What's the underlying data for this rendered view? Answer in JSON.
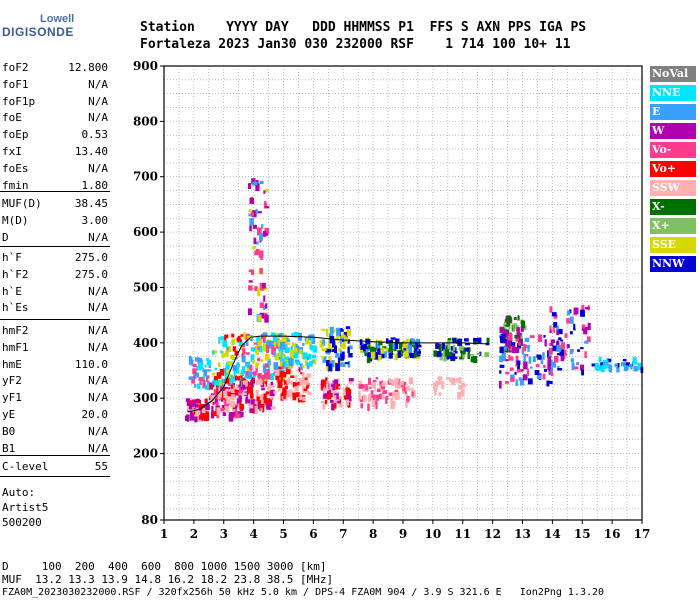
{
  "logo": {
    "top": "Lowell",
    "main": "DIGISONDE"
  },
  "header": {
    "line1": "Station    YYYY DAY   DDD HHMMSS P1  FFS S AXN PPS IGA PS",
    "line2": "Fortaleza 2023 Jan30 030 232000 RSF    1 714 100 10+ 11"
  },
  "params_a": [
    {
      "name": "foF2",
      "value": "12.800"
    },
    {
      "name": "foF1",
      "value": "N/A"
    },
    {
      "name": "foF1p",
      "value": "N/A"
    },
    {
      "name": "foE",
      "value": "N/A"
    },
    {
      "name": "foEp",
      "value": "0.53"
    },
    {
      "name": "fxI",
      "value": "13.40"
    },
    {
      "name": "foEs",
      "value": "N/A"
    },
    {
      "name": "fmin",
      "value": "1.80"
    }
  ],
  "params_b": [
    {
      "name": "MUF(D)",
      "value": "38.45"
    },
    {
      "name": "M(D)",
      "value": "3.00"
    },
    {
      "name": "D",
      "value": "N/A"
    }
  ],
  "params_c": [
    {
      "name": "h`F",
      "value": "275.0"
    },
    {
      "name": "h`F2",
      "value": "275.0"
    },
    {
      "name": "h`E",
      "value": "N/A"
    },
    {
      "name": "h`Es",
      "value": "N/A"
    }
  ],
  "params_d": [
    {
      "name": "hmF2",
      "value": "N/A"
    },
    {
      "name": "hmF1",
      "value": "N/A"
    },
    {
      "name": "hmE",
      "value": "110.0"
    },
    {
      "name": "yF2",
      "value": "N/A"
    },
    {
      "name": "yF1",
      "value": "N/A"
    },
    {
      "name": "yE",
      "value": "20.0"
    },
    {
      "name": "B0",
      "value": "N/A"
    },
    {
      "name": "B1",
      "value": "N/A"
    }
  ],
  "params_e": [
    {
      "name": "C-level",
      "value": "55"
    }
  ],
  "auto": {
    "l1": "Auto:",
    "l2": "Artist5",
    "l3": "500200"
  },
  "footer": {
    "l1": "D     100  200  400  600  800 1000 1500 3000 [km]",
    "l2": "MUF  13.2 13.3 13.9 14.8 16.2 18.2 23.8 38.5 [MHz]",
    "l3": "FZA0M_2023030232000.RSF / 320fx256h 50 kHz 5.0 km / DPS-4 FZA0M 904 / 3.9 S 321.6 E   Ion2Png 1.3.20"
  },
  "legend": [
    {
      "label": "NoVal",
      "bg": "#808080",
      "fg": "#ffffff"
    },
    {
      "label": "NNE",
      "bg": "#00e5ff",
      "fg": "#ffffff"
    },
    {
      "label": "E",
      "bg": "#3aa0ff",
      "fg": "#ffffff"
    },
    {
      "label": "W",
      "bg": "#b000b0",
      "fg": "#ffffff"
    },
    {
      "label": "Vo-",
      "bg": "#ff3c8c",
      "fg": "#ffffff"
    },
    {
      "label": "Vo+",
      "bg": "#ff0000",
      "fg": "#ffffff"
    },
    {
      "label": "SSW",
      "bg": "#ffb0b0",
      "fg": "#ffffff"
    },
    {
      "label": "X-",
      "bg": "#007000",
      "fg": "#ffffff"
    },
    {
      "label": "X+",
      "bg": "#80c060",
      "fg": "#ffffff"
    },
    {
      "label": "SSE",
      "bg": "#d8d800",
      "fg": "#ffffff"
    },
    {
      "label": "NNW",
      "bg": "#0000d0",
      "fg": "#ffffff"
    }
  ],
  "chart_data": {
    "type": "scatter",
    "x_ticks": [
      1,
      2,
      3,
      4,
      5,
      6,
      7,
      8,
      9,
      10,
      11,
      12,
      13,
      14,
      15,
      16,
      17
    ],
    "y_ticks": [
      80,
      200,
      300,
      400,
      500,
      600,
      700,
      800,
      900
    ],
    "xlim": [
      1,
      17
    ],
    "ylim": [
      80,
      900
    ],
    "grid": true,
    "trace": {
      "x": [
        1.8,
        2.2,
        2.6,
        3.0,
        3.3,
        3.6,
        3.9,
        4.2,
        5.0,
        6.0,
        7.0,
        8.0,
        9.0,
        10.0,
        11.0,
        11.8
      ],
      "y": [
        275,
        280,
        295,
        320,
        360,
        395,
        410,
        412,
        412,
        410,
        405,
        402,
        400,
        400,
        400,
        398
      ]
    },
    "clusters": [
      {
        "x": [
          1.7,
          2.4
        ],
        "y": [
          265,
          300
        ],
        "c": [
          "#ff0000",
          "#ffb0b0",
          "#b000b0"
        ],
        "n": 70
      },
      {
        "x": [
          1.8,
          2.6
        ],
        "y": [
          320,
          380
        ],
        "c": [
          "#3aa0ff",
          "#00e5ff",
          "#ff3c8c"
        ],
        "n": 40
      },
      {
        "x": [
          2.5,
          3.6
        ],
        "y": [
          270,
          330
        ],
        "c": [
          "#ff0000",
          "#ffb0b0",
          "#b000b0",
          "#ff3c8c"
        ],
        "n": 110
      },
      {
        "x": [
          2.6,
          3.6
        ],
        "y": [
          330,
          420
        ],
        "c": [
          "#3aa0ff",
          "#d8d800",
          "#ff0000",
          "#00e5ff"
        ],
        "n": 80
      },
      {
        "x": [
          3.6,
          4.6
        ],
        "y": [
          280,
          340
        ],
        "c": [
          "#ffb0b0",
          "#ff0000",
          "#b000b0"
        ],
        "n": 90
      },
      {
        "x": [
          3.6,
          5.0
        ],
        "y": [
          340,
          420
        ],
        "c": [
          "#d8d800",
          "#3aa0ff",
          "#00e5ff",
          "#ff3c8c"
        ],
        "n": 110
      },
      {
        "x": [
          3.8,
          4.4
        ],
        "y": [
          430,
          700
        ],
        "c": [
          "#d8d800",
          "#ff3c8c",
          "#3aa0ff",
          "#b000b0"
        ],
        "n": 60
      },
      {
        "x": [
          4.6,
          5.8
        ],
        "y": [
          300,
          360
        ],
        "c": [
          "#ffb0b0",
          "#ff0000"
        ],
        "n": 70
      },
      {
        "x": [
          4.6,
          6.0
        ],
        "y": [
          360,
          420
        ],
        "c": [
          "#d8d800",
          "#3aa0ff",
          "#00e5ff"
        ],
        "n": 90
      },
      {
        "x": [
          6.2,
          7.2
        ],
        "y": [
          290,
          340
        ],
        "c": [
          "#ffb0b0",
          "#ff0000",
          "#b000b0"
        ],
        "n": 60
      },
      {
        "x": [
          6.2,
          7.2
        ],
        "y": [
          360,
          430
        ],
        "c": [
          "#d8d800",
          "#3aa0ff",
          "#0000d0"
        ],
        "n": 70
      },
      {
        "x": [
          7.5,
          9.3
        ],
        "y": [
          290,
          340
        ],
        "c": [
          "#ffb0b0",
          "#ff3c8c"
        ],
        "n": 80
      },
      {
        "x": [
          7.5,
          9.5
        ],
        "y": [
          375,
          410
        ],
        "c": [
          "#0000d0",
          "#d8d800",
          "#3aa0ff",
          "#007000"
        ],
        "n": 120
      },
      {
        "x": [
          10.0,
          11.0
        ],
        "y": [
          310,
          340
        ],
        "c": [
          "#ffb0b0"
        ],
        "n": 25
      },
      {
        "x": [
          10.0,
          11.8
        ],
        "y": [
          375,
          410
        ],
        "c": [
          "#007000",
          "#0000d0",
          "#80c060"
        ],
        "n": 60
      },
      {
        "x": [
          12.2,
          13.0
        ],
        "y": [
          390,
          450
        ],
        "c": [
          "#007000",
          "#80c060",
          "#b000b0"
        ],
        "n": 50
      },
      {
        "x": [
          12.2,
          14.0
        ],
        "y": [
          330,
          420
        ],
        "c": [
          "#0000d0",
          "#3aa0ff",
          "#b000b0",
          "#ff3c8c"
        ],
        "n": 90
      },
      {
        "x": [
          13.8,
          15.2
        ],
        "y": [
          350,
          470
        ],
        "c": [
          "#0000d0",
          "#3aa0ff",
          "#ff3c8c",
          "#b000b0"
        ],
        "n": 70
      },
      {
        "x": [
          15.2,
          17.0
        ],
        "y": [
          355,
          375
        ],
        "c": [
          "#3aa0ff",
          "#00e5ff",
          "#0000d0"
        ],
        "n": 40
      }
    ]
  }
}
